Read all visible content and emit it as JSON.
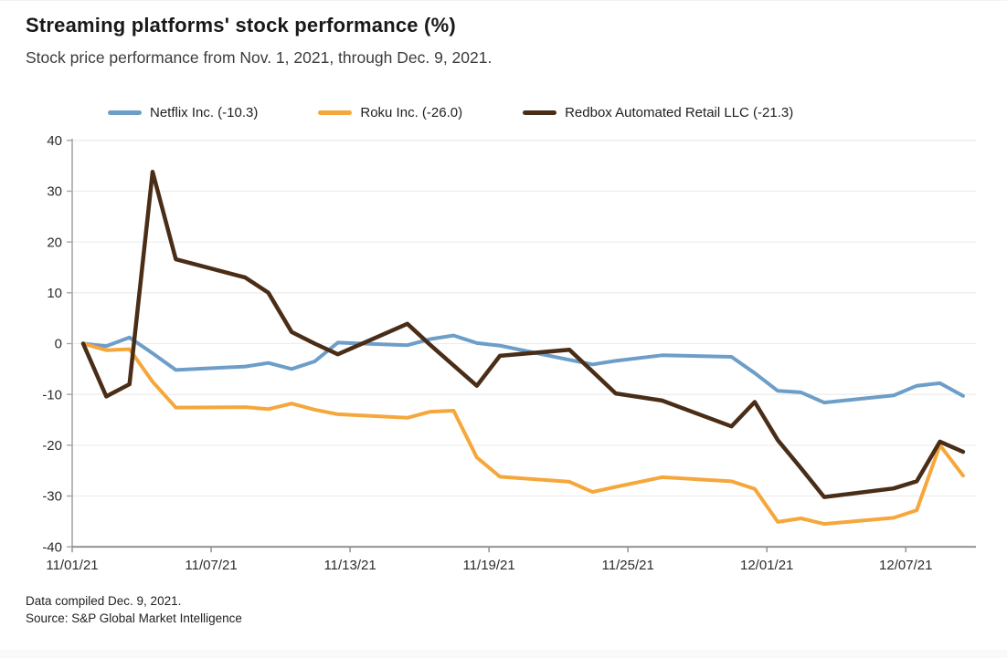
{
  "header": {
    "title": "Streaming platforms' stock performance (%)",
    "subtitle": "Stock price performance from Nov. 1, 2021, through Dec. 9, 2021."
  },
  "legend": {
    "items": [
      {
        "label": "Netflix Inc. (-10.3)",
        "color": "#6d9ec8"
      },
      {
        "label": "Roku Inc. (-26.0)",
        "color": "#f5a73b"
      },
      {
        "label": "Redbox Automated Retail LLC (-21.3)",
        "color": "#4a2d17"
      }
    ]
  },
  "chart_data": {
    "type": "line",
    "title": "Streaming platforms' stock performance (%)",
    "xlabel": "",
    "ylabel": "",
    "ylim": [
      -40,
      40
    ],
    "grid": "horizontal",
    "legend_position": "top",
    "y_ticks": [
      40,
      30,
      20,
      10,
      0,
      -10,
      -20,
      -30,
      -40
    ],
    "x_tick_labels": [
      "11/01/21",
      "11/07/21",
      "11/13/21",
      "11/19/21",
      "11/25/21",
      "12/01/21",
      "12/07/21"
    ],
    "x_tick_day_offsets": [
      0,
      6,
      12,
      18,
      24,
      30,
      36
    ],
    "x": [
      "11/01/21",
      "11/02/21",
      "11/03/21",
      "11/04/21",
      "11/05/21",
      "11/08/21",
      "11/09/21",
      "11/10/21",
      "11/11/21",
      "11/12/21",
      "11/15/21",
      "11/16/21",
      "11/17/21",
      "11/18/21",
      "11/19/21",
      "11/22/21",
      "11/23/21",
      "11/24/21",
      "11/26/21",
      "11/29/21",
      "11/30/21",
      "12/01/21",
      "12/02/21",
      "12/03/21",
      "12/06/21",
      "12/07/21",
      "12/08/21",
      "12/09/21"
    ],
    "x_day_offsets": [
      0,
      1,
      2,
      3,
      4,
      7,
      8,
      9,
      10,
      11,
      14,
      15,
      16,
      17,
      18,
      21,
      22,
      23,
      25,
      28,
      29,
      30,
      31,
      32,
      35,
      36,
      37,
      38
    ],
    "series": [
      {
        "name": "netflix",
        "label": "Netflix Inc. (-10.3)",
        "final_change_pct": -10.3,
        "color": "#6d9ec8",
        "stroke_width": 4,
        "values": [
          0,
          -0.5,
          1.2,
          -1.9,
          -5.2,
          -4.5,
          -3.8,
          -5.0,
          -3.5,
          0.2,
          -0.3,
          0.9,
          1.6,
          0.1,
          -0.4,
          -3.2,
          -4.1,
          -3.4,
          -2.3,
          -2.6,
          -5.8,
          -9.3,
          -9.6,
          -11.6,
          -10.2,
          -8.3,
          -7.8,
          -10.3
        ]
      },
      {
        "name": "roku",
        "label": "Roku Inc. (-26.0)",
        "final_change_pct": -26.0,
        "color": "#f5a73b",
        "stroke_width": 4,
        "values": [
          0,
          -1.3,
          -1.1,
          -7.5,
          -12.6,
          -12.5,
          -12.9,
          -11.8,
          -13.0,
          -13.9,
          -14.6,
          -13.4,
          -13.2,
          -22.4,
          -26.2,
          -27.2,
          -29.2,
          -28.2,
          -26.3,
          -27.1,
          -28.6,
          -35.1,
          -34.4,
          -35.5,
          -34.3,
          -32.8,
          -20.0,
          -26.0
        ]
      },
      {
        "name": "redbox",
        "label": "Redbox Automated Retail LLC (-21.3)",
        "final_change_pct": -21.3,
        "color": "#4a2d17",
        "stroke_width": 4.5,
        "values": [
          0,
          -10.4,
          -8.0,
          33.8,
          16.6,
          13.0,
          10.0,
          2.3,
          0.0,
          -2.1,
          3.9,
          -0.3,
          -4.3,
          -8.3,
          -2.4,
          -1.2,
          -5.5,
          -9.8,
          -11.2,
          -16.3,
          -11.5,
          -19.0,
          -24.5,
          -30.2,
          -28.5,
          -27.1,
          -19.3,
          -21.3
        ]
      }
    ],
    "colors": {
      "grid": "#ededed",
      "y_axis": "#a6a6a6",
      "x_axis": "#8c8c8c",
      "tick_text": "#2b2b2b"
    }
  },
  "footer": {
    "line1": "Data compiled Dec. 9, 2021.",
    "line2": "Source: S&P Global Market Intelligence"
  }
}
